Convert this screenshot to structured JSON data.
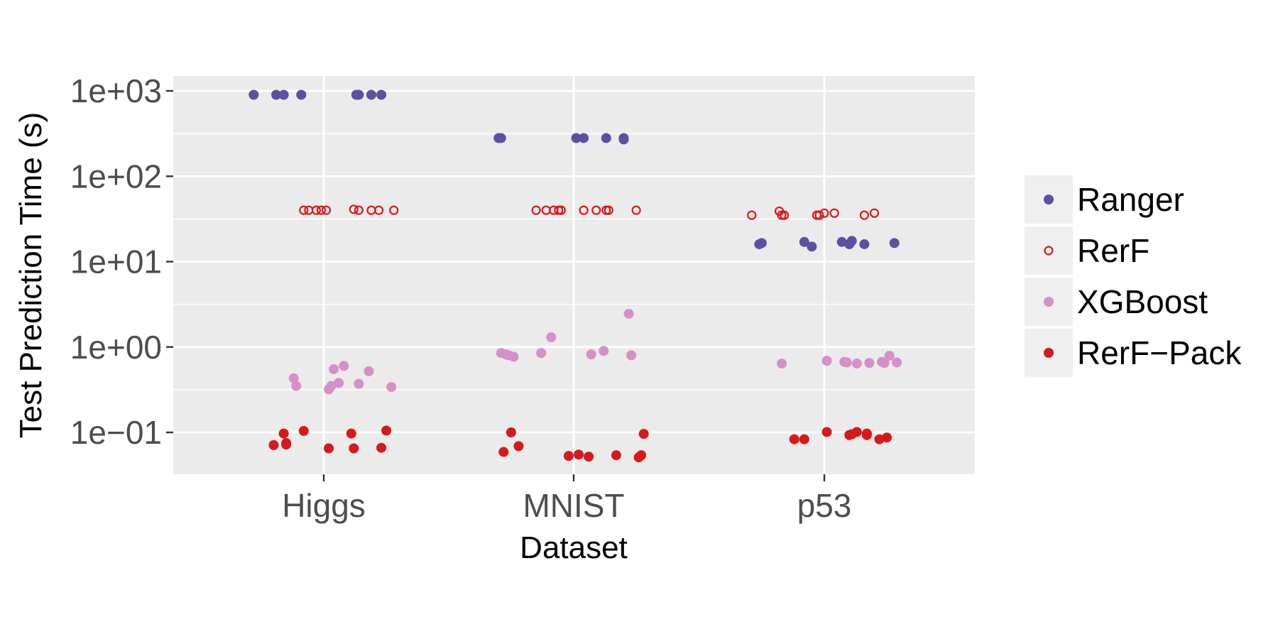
{
  "chart_data": {
    "type": "scatter",
    "title": "",
    "xlabel": "Dataset",
    "ylabel": "Test Prediction Time (s)",
    "categories": [
      "Higgs",
      "MNIST",
      "p53"
    ],
    "y_scale": "log10",
    "ylim": [
      0.028,
      1300
    ],
    "y_ticks": [
      0.1,
      1,
      10,
      100,
      1000
    ],
    "y_tick_labels": [
      "1e−01",
      "1e+00",
      "1e+01",
      "1e+02",
      "1e+03"
    ],
    "grid": true,
    "legend_position": "right",
    "series": [
      {
        "name": "Ranger",
        "marker": "filled-circle",
        "color": "#5E4FA2",
        "points": [
          {
            "category": "Higgs",
            "jitter": -0.28,
            "y": 900
          },
          {
            "category": "Higgs",
            "jitter": -0.19,
            "y": 900
          },
          {
            "category": "Higgs",
            "jitter": -0.16,
            "y": 900
          },
          {
            "category": "Higgs",
            "jitter": -0.09,
            "y": 900
          },
          {
            "category": "Higgs",
            "jitter": 0.13,
            "y": 900
          },
          {
            "category": "Higgs",
            "jitter": 0.14,
            "y": 900
          },
          {
            "category": "Higgs",
            "jitter": 0.19,
            "y": 900
          },
          {
            "category": "Higgs",
            "jitter": 0.23,
            "y": 900
          },
          {
            "category": "MNIST",
            "jitter": -0.3,
            "y": 280
          },
          {
            "category": "MNIST",
            "jitter": -0.29,
            "y": 280
          },
          {
            "category": "MNIST",
            "jitter": 0.01,
            "y": 280
          },
          {
            "category": "MNIST",
            "jitter": 0.04,
            "y": 280
          },
          {
            "category": "MNIST",
            "jitter": 0.13,
            "y": 280
          },
          {
            "category": "MNIST",
            "jitter": 0.2,
            "y": 280
          },
          {
            "category": "MNIST",
            "jitter": 0.2,
            "y": 270
          },
          {
            "category": "p53",
            "jitter": -0.26,
            "y": 16
          },
          {
            "category": "p53",
            "jitter": -0.25,
            "y": 16.5
          },
          {
            "category": "p53",
            "jitter": -0.08,
            "y": 17
          },
          {
            "category": "p53",
            "jitter": -0.05,
            "y": 15
          },
          {
            "category": "p53",
            "jitter": 0.07,
            "y": 17
          },
          {
            "category": "p53",
            "jitter": 0.1,
            "y": 16
          },
          {
            "category": "p53",
            "jitter": 0.11,
            "y": 17.5
          },
          {
            "category": "p53",
            "jitter": 0.16,
            "y": 16
          },
          {
            "category": "p53",
            "jitter": 0.28,
            "y": 16.5
          }
        ]
      },
      {
        "name": "RerF",
        "marker": "open-circle",
        "color": "#D7191C",
        "points": [
          {
            "category": "Higgs",
            "jitter": -0.08,
            "y": 40
          },
          {
            "category": "Higgs",
            "jitter": -0.06,
            "y": 40
          },
          {
            "category": "Higgs",
            "jitter": -0.03,
            "y": 40
          },
          {
            "category": "Higgs",
            "jitter": -0.01,
            "y": 40
          },
          {
            "category": "Higgs",
            "jitter": 0.01,
            "y": 40
          },
          {
            "category": "Higgs",
            "jitter": 0.12,
            "y": 41
          },
          {
            "category": "Higgs",
            "jitter": 0.14,
            "y": 40
          },
          {
            "category": "Higgs",
            "jitter": 0.19,
            "y": 40
          },
          {
            "category": "Higgs",
            "jitter": 0.22,
            "y": 40
          },
          {
            "category": "Higgs",
            "jitter": 0.28,
            "y": 40
          },
          {
            "category": "MNIST",
            "jitter": -0.15,
            "y": 40
          },
          {
            "category": "MNIST",
            "jitter": -0.11,
            "y": 40
          },
          {
            "category": "MNIST",
            "jitter": -0.08,
            "y": 40
          },
          {
            "category": "MNIST",
            "jitter": -0.06,
            "y": 40
          },
          {
            "category": "MNIST",
            "jitter": -0.05,
            "y": 40
          },
          {
            "category": "MNIST",
            "jitter": 0.04,
            "y": 40
          },
          {
            "category": "MNIST",
            "jitter": 0.09,
            "y": 40
          },
          {
            "category": "MNIST",
            "jitter": 0.13,
            "y": 40
          },
          {
            "category": "MNIST",
            "jitter": 0.14,
            "y": 40
          },
          {
            "category": "MNIST",
            "jitter": 0.25,
            "y": 40
          },
          {
            "category": "p53",
            "jitter": -0.29,
            "y": 35
          },
          {
            "category": "p53",
            "jitter": -0.18,
            "y": 39
          },
          {
            "category": "p53",
            "jitter": -0.17,
            "y": 35
          },
          {
            "category": "p53",
            "jitter": -0.16,
            "y": 35
          },
          {
            "category": "p53",
            "jitter": -0.03,
            "y": 35
          },
          {
            "category": "p53",
            "jitter": -0.02,
            "y": 35
          },
          {
            "category": "p53",
            "jitter": 0.0,
            "y": 37
          },
          {
            "category": "p53",
            "jitter": 0.04,
            "y": 37
          },
          {
            "category": "p53",
            "jitter": 0.16,
            "y": 35
          },
          {
            "category": "p53",
            "jitter": 0.2,
            "y": 37
          }
        ]
      },
      {
        "name": "XGBoost",
        "marker": "filled-circle",
        "color": "#D68FC8",
        "points": [
          {
            "category": "Higgs",
            "jitter": -0.12,
            "y": 0.43
          },
          {
            "category": "Higgs",
            "jitter": -0.11,
            "y": 0.35
          },
          {
            "category": "Higgs",
            "jitter": 0.02,
            "y": 0.32
          },
          {
            "category": "Higgs",
            "jitter": 0.03,
            "y": 0.35
          },
          {
            "category": "Higgs",
            "jitter": 0.04,
            "y": 0.55
          },
          {
            "category": "Higgs",
            "jitter": 0.06,
            "y": 0.38
          },
          {
            "category": "Higgs",
            "jitter": 0.08,
            "y": 0.6
          },
          {
            "category": "Higgs",
            "jitter": 0.14,
            "y": 0.37
          },
          {
            "category": "Higgs",
            "jitter": 0.18,
            "y": 0.52
          },
          {
            "category": "Higgs",
            "jitter": 0.27,
            "y": 0.34
          },
          {
            "category": "MNIST",
            "jitter": -0.29,
            "y": 0.85
          },
          {
            "category": "MNIST",
            "jitter": -0.27,
            "y": 0.82
          },
          {
            "category": "MNIST",
            "jitter": -0.26,
            "y": 0.8
          },
          {
            "category": "MNIST",
            "jitter": -0.24,
            "y": 0.77
          },
          {
            "category": "MNIST",
            "jitter": -0.13,
            "y": 0.85
          },
          {
            "category": "MNIST",
            "jitter": -0.09,
            "y": 1.3
          },
          {
            "category": "MNIST",
            "jitter": 0.07,
            "y": 0.82
          },
          {
            "category": "MNIST",
            "jitter": 0.12,
            "y": 0.9
          },
          {
            "category": "MNIST",
            "jitter": 0.22,
            "y": 2.45
          },
          {
            "category": "MNIST",
            "jitter": 0.23,
            "y": 0.8
          },
          {
            "category": "p53",
            "jitter": -0.17,
            "y": 0.64
          },
          {
            "category": "p53",
            "jitter": 0.01,
            "y": 0.69
          },
          {
            "category": "p53",
            "jitter": 0.08,
            "y": 0.67
          },
          {
            "category": "p53",
            "jitter": 0.09,
            "y": 0.66
          },
          {
            "category": "p53",
            "jitter": 0.13,
            "y": 0.64
          },
          {
            "category": "p53",
            "jitter": 0.18,
            "y": 0.65
          },
          {
            "category": "p53",
            "jitter": 0.23,
            "y": 0.67
          },
          {
            "category": "p53",
            "jitter": 0.24,
            "y": 0.65
          },
          {
            "category": "p53",
            "jitter": 0.26,
            "y": 0.79
          },
          {
            "category": "p53",
            "jitter": 0.29,
            "y": 0.66
          }
        ]
      },
      {
        "name": "RerF−Pack",
        "marker": "filled-circle",
        "color": "#D7191C",
        "points": [
          {
            "category": "Higgs",
            "jitter": -0.2,
            "y": 0.071
          },
          {
            "category": "Higgs",
            "jitter": -0.16,
            "y": 0.097
          },
          {
            "category": "Higgs",
            "jitter": -0.15,
            "y": 0.075
          },
          {
            "category": "Higgs",
            "jitter": -0.15,
            "y": 0.072
          },
          {
            "category": "Higgs",
            "jitter": -0.08,
            "y": 0.104
          },
          {
            "category": "Higgs",
            "jitter": 0.02,
            "y": 0.065
          },
          {
            "category": "Higgs",
            "jitter": 0.11,
            "y": 0.097
          },
          {
            "category": "Higgs",
            "jitter": 0.12,
            "y": 0.065
          },
          {
            "category": "Higgs",
            "jitter": 0.23,
            "y": 0.066
          },
          {
            "category": "Higgs",
            "jitter": 0.25,
            "y": 0.105
          },
          {
            "category": "MNIST",
            "jitter": -0.28,
            "y": 0.059
          },
          {
            "category": "MNIST",
            "jitter": -0.25,
            "y": 0.1
          },
          {
            "category": "MNIST",
            "jitter": -0.22,
            "y": 0.069
          },
          {
            "category": "MNIST",
            "jitter": -0.02,
            "y": 0.053
          },
          {
            "category": "MNIST",
            "jitter": 0.02,
            "y": 0.055
          },
          {
            "category": "MNIST",
            "jitter": 0.06,
            "y": 0.052
          },
          {
            "category": "MNIST",
            "jitter": 0.17,
            "y": 0.054
          },
          {
            "category": "MNIST",
            "jitter": 0.26,
            "y": 0.051
          },
          {
            "category": "MNIST",
            "jitter": 0.27,
            "y": 0.054
          },
          {
            "category": "MNIST",
            "jitter": 0.28,
            "y": 0.096
          },
          {
            "category": "p53",
            "jitter": -0.12,
            "y": 0.083
          },
          {
            "category": "p53",
            "jitter": -0.08,
            "y": 0.083
          },
          {
            "category": "p53",
            "jitter": 0.01,
            "y": 0.101
          },
          {
            "category": "p53",
            "jitter": 0.1,
            "y": 0.093
          },
          {
            "category": "p53",
            "jitter": 0.11,
            "y": 0.095
          },
          {
            "category": "p53",
            "jitter": 0.13,
            "y": 0.101
          },
          {
            "category": "p53",
            "jitter": 0.17,
            "y": 0.097
          },
          {
            "category": "p53",
            "jitter": 0.17,
            "y": 0.093
          },
          {
            "category": "p53",
            "jitter": 0.22,
            "y": 0.083
          },
          {
            "category": "p53",
            "jitter": 0.25,
            "y": 0.087
          }
        ]
      }
    ]
  },
  "colors": {
    "panel_background": "#EBEBEB",
    "grid": "#FFFFFF",
    "legend_key_background": "#EFEFEF"
  }
}
